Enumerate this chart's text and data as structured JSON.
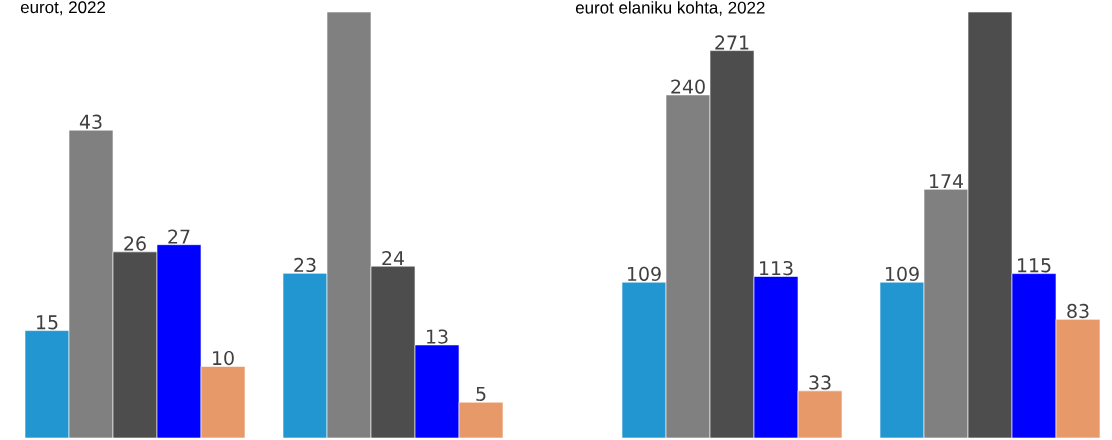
{
  "chart_data": [
    {
      "type": "bar",
      "title": "eurot, 2022",
      "categories": [
        null,
        null
      ],
      "ylim": [
        0,
        59.5
      ],
      "series": [
        {
          "color": "#2196d0",
          "values": [
            15,
            23
          ],
          "value_labels": [
            "15",
            "23"
          ]
        },
        {
          "color": "#808080",
          "values": [
            43,
            59.5
          ],
          "value_labels": [
            "43",
            null
          ]
        },
        {
          "color": "#4d4d4d",
          "values": [
            26,
            24
          ],
          "value_labels": [
            "26",
            "24"
          ]
        },
        {
          "color": "#0000ff",
          "values": [
            27,
            13
          ],
          "value_labels": [
            "27",
            "13"
          ]
        },
        {
          "color": "#e8996a",
          "values": [
            10,
            5
          ],
          "value_labels": [
            "10",
            "5"
          ]
        }
      ]
    },
    {
      "type": "bar",
      "title": "eurot elaniku kohta, 2022",
      "categories": [
        null,
        null
      ],
      "ylim": [
        0,
        298
      ],
      "series": [
        {
          "color": "#2196d0",
          "values": [
            109,
            109
          ],
          "value_labels": [
            "109",
            "109"
          ]
        },
        {
          "color": "#808080",
          "values": [
            240,
            174
          ],
          "value_labels": [
            "240",
            "174"
          ]
        },
        {
          "color": "#4d4d4d",
          "values": [
            271,
            298
          ],
          "value_labels": [
            "271",
            null
          ]
        },
        {
          "color": "#0000ff",
          "values": [
            113,
            115
          ],
          "value_labels": [
            "113",
            "115"
          ]
        },
        {
          "color": "#e8996a",
          "values": [
            33,
            83
          ],
          "value_labels": [
            "33",
            "83"
          ]
        }
      ]
    }
  ]
}
